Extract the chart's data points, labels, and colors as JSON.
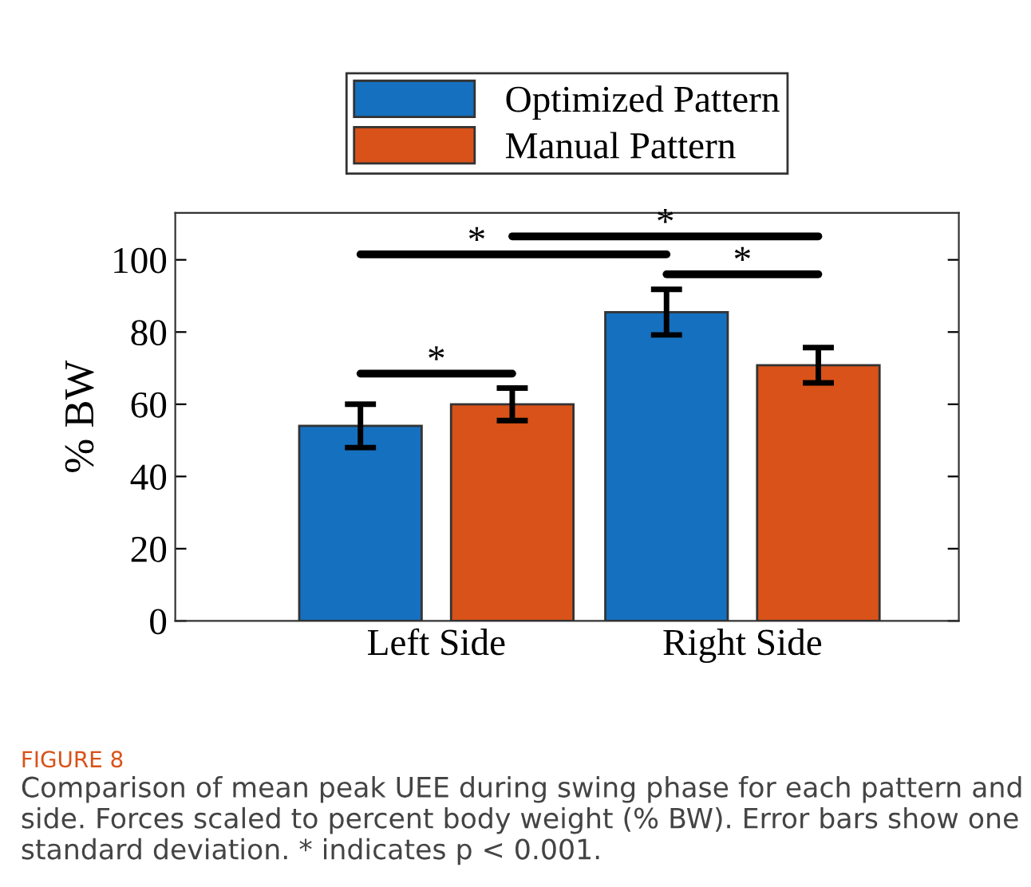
{
  "chart_data": {
    "type": "bar",
    "ylabel": "% BW",
    "categories": [
      "Left Side",
      "Right Side"
    ],
    "series": [
      {
        "name": "Optimized Pattern",
        "color": "#1570bf",
        "values": [
          54,
          85.5
        ],
        "errors": [
          6,
          6.3
        ]
      },
      {
        "name": "Manual Pattern",
        "color": "#d95219",
        "values": [
          60,
          70.8
        ],
        "errors": [
          4.5,
          4.9
        ]
      }
    ],
    "ylim": [
      0,
      113
    ],
    "yticks": [
      0,
      20,
      40,
      60,
      80,
      100
    ],
    "grid": false,
    "legend": "top",
    "annotations": [
      "*",
      "*",
      "*",
      "*",
      "FIGURE 8",
      "Comparison of mean peak UEE during swing phase for each pattern and side. Forces scaled to percent body weight (% BW). Error bars show one standard deviation. * indicates p < 0.001."
    ]
  }
}
